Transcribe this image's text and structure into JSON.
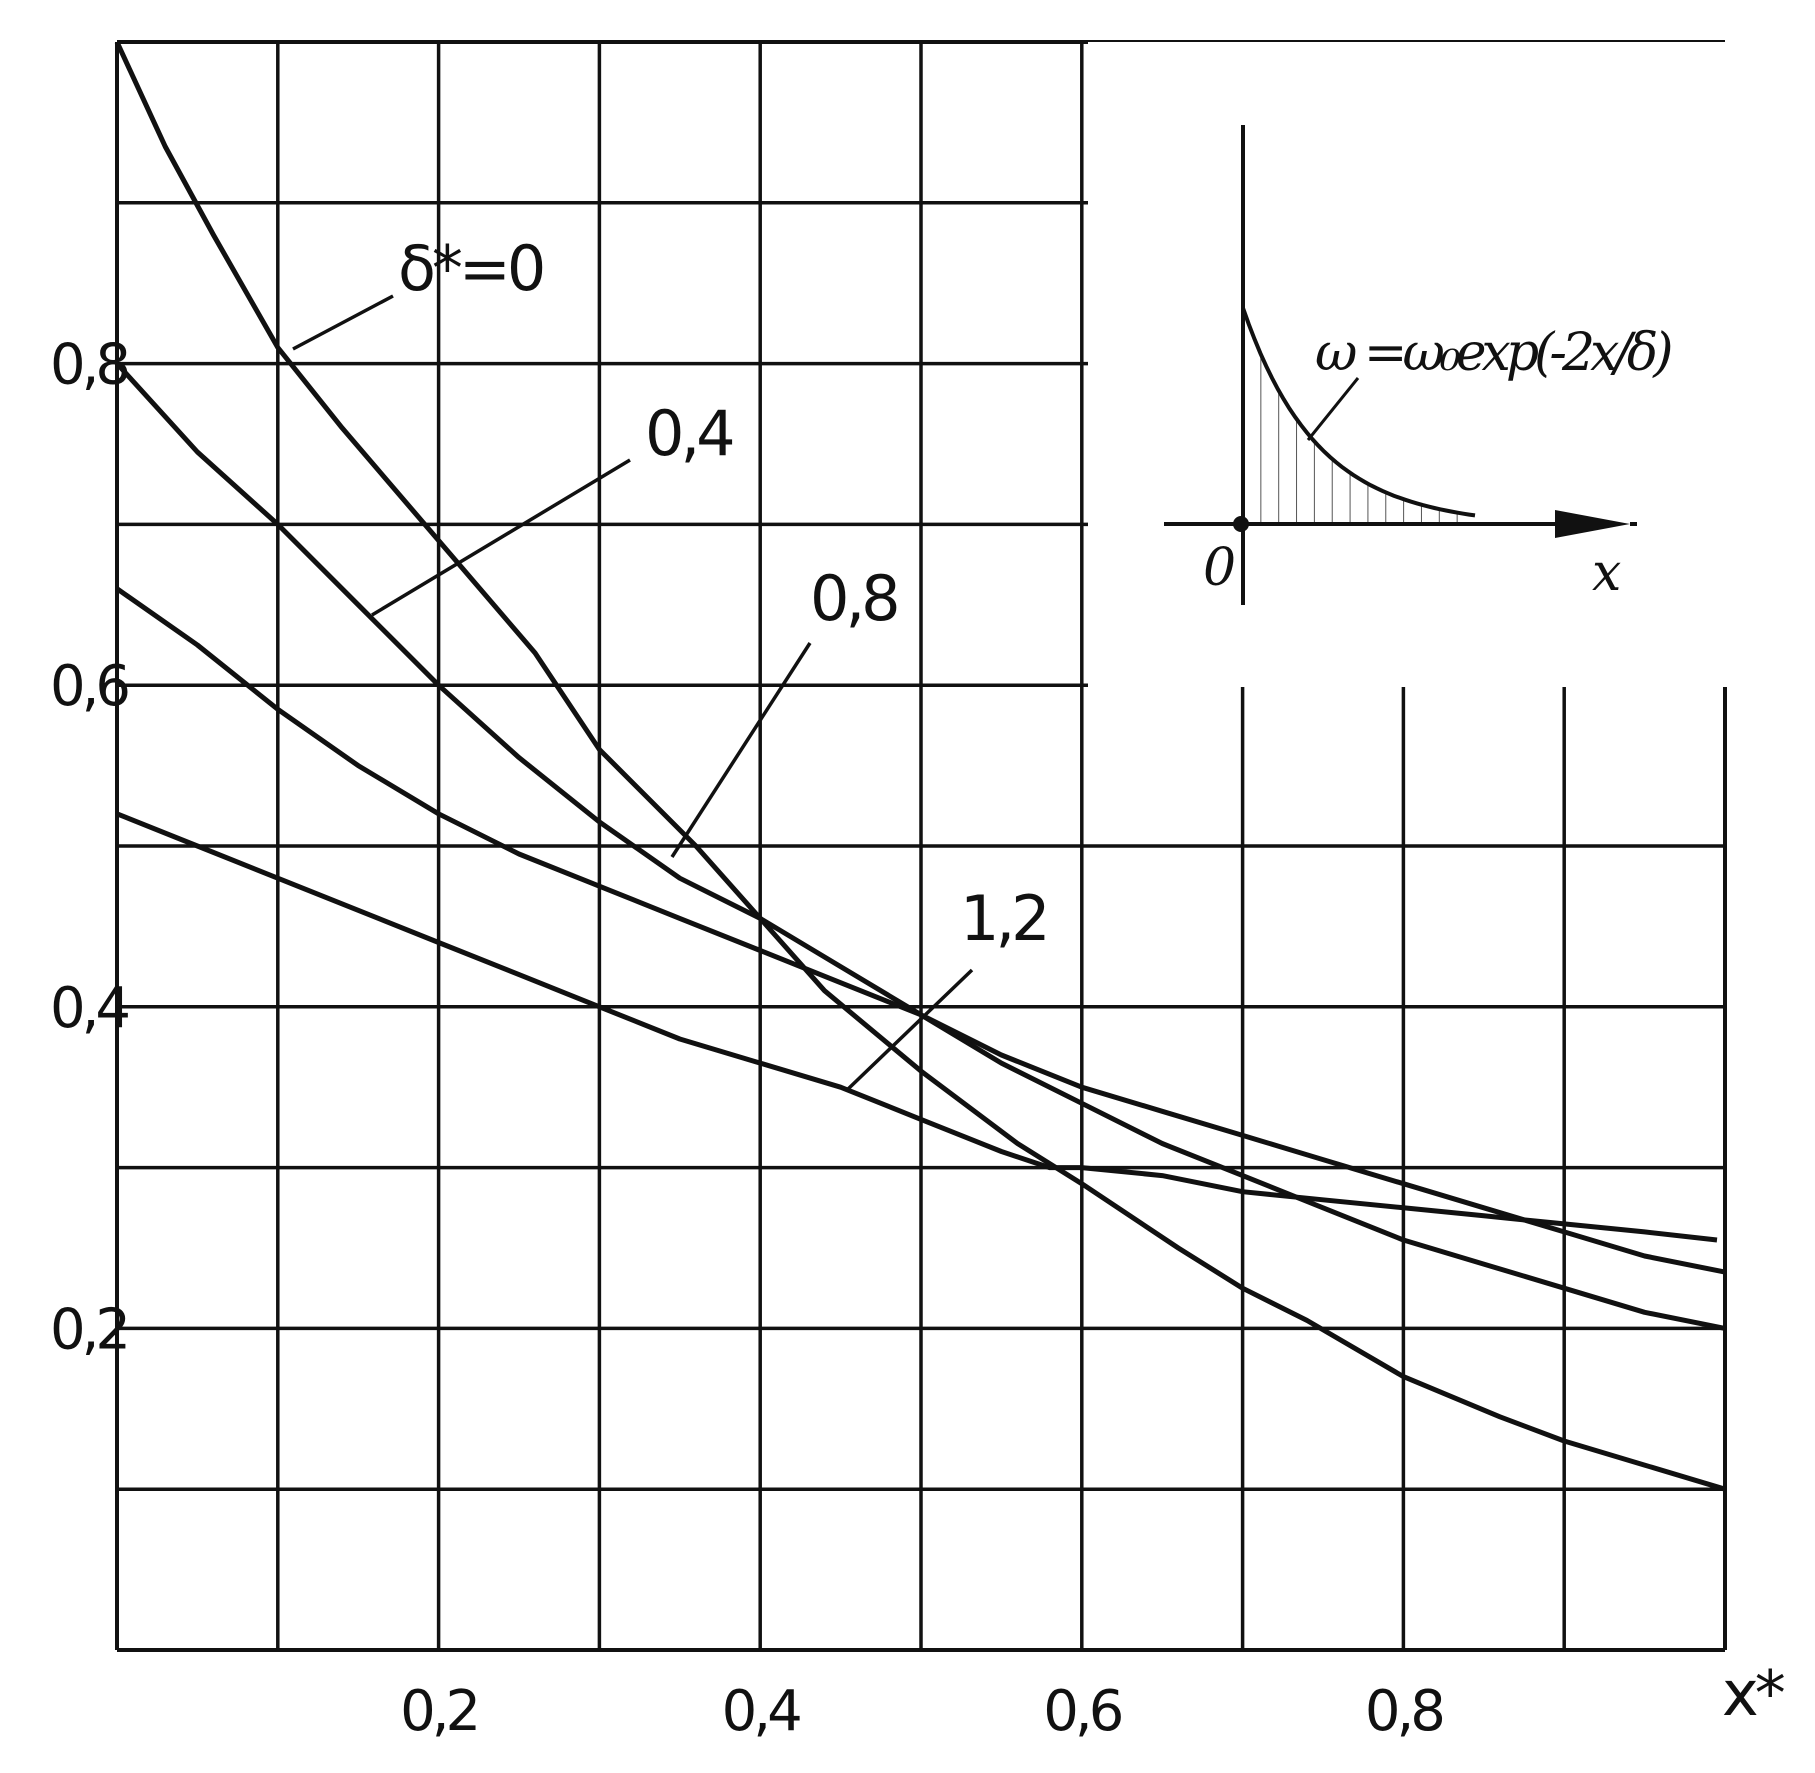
{
  "chart_data": {
    "type": "line",
    "xlabel": "x*",
    "ylabel": "",
    "xlim": [
      0,
      1.0
    ],
    "ylim": [
      0,
      1.0
    ],
    "x_ticks": [
      "0,2",
      "0,4",
      "0,6",
      "0,8"
    ],
    "y_ticks": [
      "0,2",
      "0,4",
      "0,6",
      "0,8"
    ],
    "grid": true,
    "series": [
      {
        "name": "δ*=0",
        "x": [
          0.0,
          0.03,
          0.06,
          0.1,
          0.14,
          0.2,
          0.26,
          0.3,
          0.36,
          0.4,
          0.44,
          0.5,
          0.56,
          0.6,
          0.66,
          0.7,
          0.74,
          0.8,
          0.86,
          0.9,
          0.95,
          1.0
        ],
        "y": [
          1.0,
          0.935,
          0.88,
          0.81,
          0.76,
          0.69,
          0.62,
          0.56,
          0.5,
          0.455,
          0.41,
          0.36,
          0.315,
          0.29,
          0.25,
          0.225,
          0.205,
          0.17,
          0.145,
          0.13,
          0.115,
          0.1
        ]
      },
      {
        "name": "0,4",
        "x": [
          0.0,
          0.05,
          0.1,
          0.15,
          0.2,
          0.25,
          0.3,
          0.35,
          0.4,
          0.45,
          0.5,
          0.55,
          0.6,
          0.65,
          0.7,
          0.75,
          0.8,
          0.85,
          0.9,
          0.95,
          1.0
        ],
        "y": [
          0.8,
          0.745,
          0.7,
          0.65,
          0.6,
          0.555,
          0.515,
          0.48,
          0.455,
          0.425,
          0.395,
          0.365,
          0.34,
          0.315,
          0.295,
          0.275,
          0.255,
          0.24,
          0.225,
          0.21,
          0.2
        ]
      },
      {
        "name": "0,8",
        "x": [
          0.0,
          0.05,
          0.1,
          0.15,
          0.2,
          0.25,
          0.3,
          0.35,
          0.4,
          0.45,
          0.5,
          0.55,
          0.6,
          0.65,
          0.7,
          0.75,
          0.8,
          0.85,
          0.9,
          0.95,
          1.0
        ],
        "y": [
          0.66,
          0.625,
          0.585,
          0.55,
          0.52,
          0.495,
          0.475,
          0.455,
          0.435,
          0.415,
          0.395,
          0.37,
          0.35,
          0.335,
          0.32,
          0.305,
          0.29,
          0.275,
          0.26,
          0.245,
          0.235
        ]
      },
      {
        "name": "1,2",
        "x": [
          0.0,
          0.05,
          0.1,
          0.15,
          0.2,
          0.25,
          0.3,
          0.35,
          0.4,
          0.45,
          0.5,
          0.55,
          0.58,
          0.6,
          0.65,
          0.7,
          0.75,
          0.8,
          0.85,
          0.9,
          0.95,
          0.995
        ],
        "y": [
          0.52,
          0.5,
          0.48,
          0.46,
          0.44,
          0.42,
          0.4,
          0.38,
          0.365,
          0.35,
          0.33,
          0.31,
          0.3,
          0.3,
          0.295,
          0.285,
          0.28,
          0.275,
          0.27,
          0.265,
          0.26,
          0.255
        ]
      }
    ],
    "curve_labels": [
      {
        "text": "δ*=0",
        "curve": "δ*=0"
      },
      {
        "text": "0,4",
        "curve": "0,4"
      },
      {
        "text": "0,8",
        "curve": "0,8"
      },
      {
        "text": "1,2",
        "curve": "1,2"
      }
    ],
    "inset": {
      "formula": "ω =ω₀exp(-2x/δ)",
      "x_axis_label": "x",
      "origin_label": "0"
    }
  }
}
